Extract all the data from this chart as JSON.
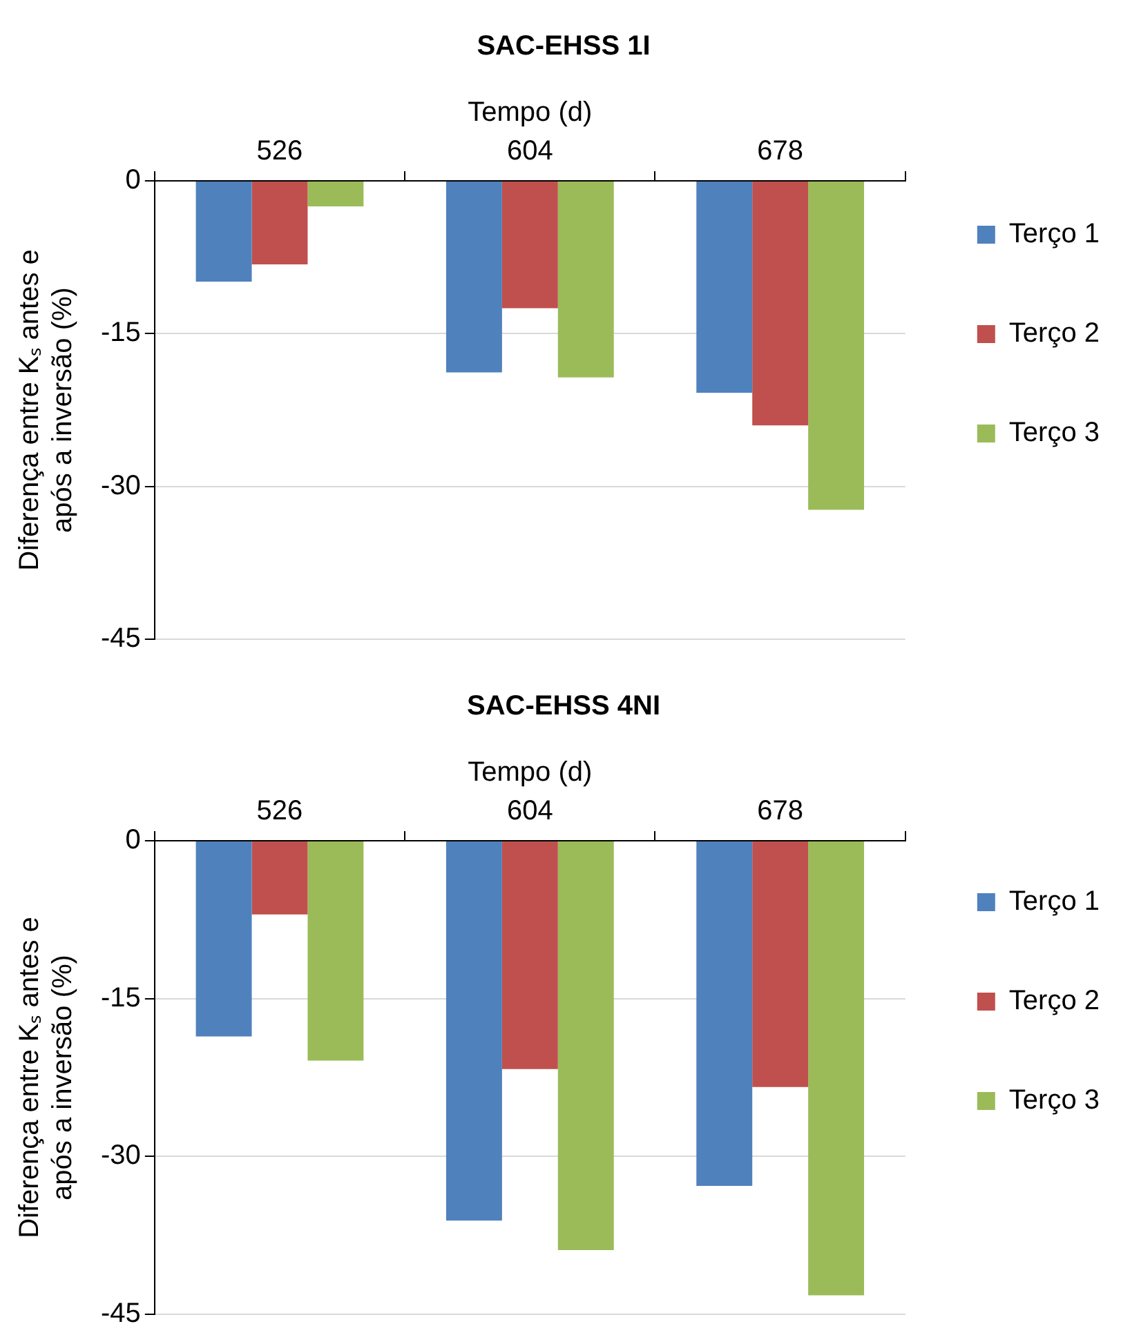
{
  "chart_data": [
    {
      "type": "bar",
      "title": "SAC-EHSS 1I",
      "xlabel": "Tempo (d)",
      "ylabel": "Diferença entre Kₛ antes e após a inversão (%)",
      "categories": [
        "526",
        "604",
        "678"
      ],
      "series": [
        {
          "name": "Terço 1",
          "color": "#4f81bd",
          "values": [
            -9.9,
            -18.8,
            -20.8
          ]
        },
        {
          "name": "Terço 2",
          "color": "#c0504d",
          "values": [
            -8.2,
            -12.5,
            -24.0
          ]
        },
        {
          "name": "Terço 3",
          "color": "#9bbb59",
          "values": [
            -2.5,
            -19.3,
            -32.3
          ]
        }
      ],
      "ylim": [
        -45,
        0
      ],
      "yticks": [
        -45,
        -30,
        -15,
        0
      ],
      "grid": "y",
      "legend": "right"
    },
    {
      "type": "bar",
      "title": "SAC-EHSS 4NI",
      "xlabel": "Tempo (d)",
      "ylabel": "Diferença entre Kₛ antes e após a inversão (%)",
      "categories": [
        "526",
        "604",
        "678"
      ],
      "series": [
        {
          "name": "Terço 1",
          "color": "#4f81bd",
          "values": [
            -18.6,
            -36.1,
            -32.8
          ]
        },
        {
          "name": "Terço 2",
          "color": "#c0504d",
          "values": [
            -7.0,
            -21.7,
            -23.4
          ]
        },
        {
          "name": "Terço 3",
          "color": "#9bbb59",
          "values": [
            -20.9,
            -38.9,
            -43.2
          ]
        }
      ],
      "ylim": [
        -45,
        0
      ],
      "yticks": [
        -45,
        -30,
        -15,
        0
      ],
      "grid": "y",
      "legend": "right"
    }
  ]
}
